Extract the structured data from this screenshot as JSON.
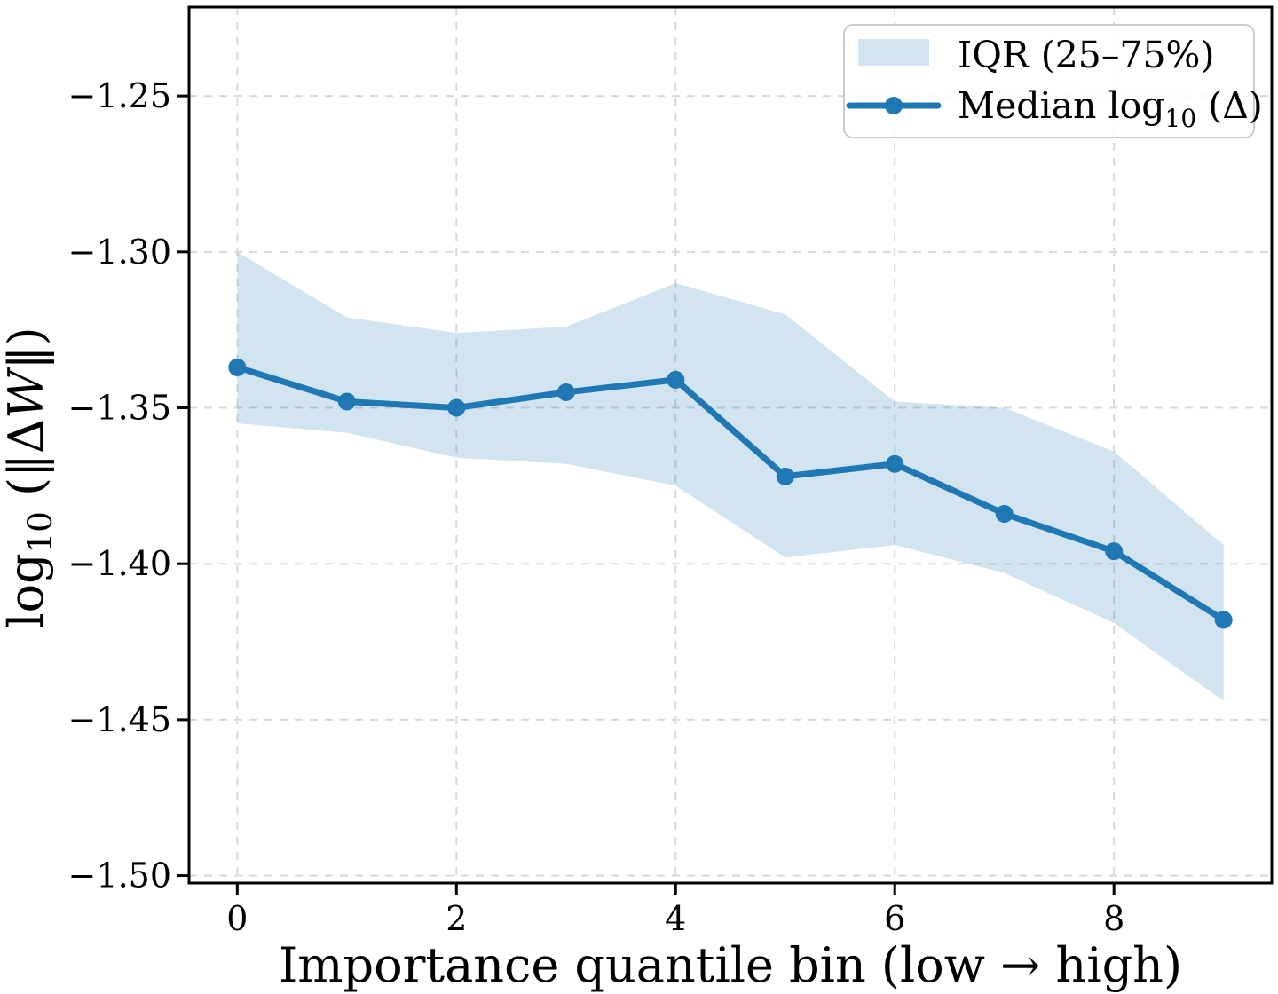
{
  "chart_data": {
    "type": "line",
    "title": "",
    "x": [
      0,
      1,
      2,
      3,
      4,
      5,
      6,
      7,
      8,
      9
    ],
    "series": [
      {
        "name": "Median log10 (Δ)",
        "label_segments": [
          {
            "text": "Median log"
          },
          {
            "text": "10",
            "style": "sub"
          },
          {
            "text": " (Δ)"
          }
        ],
        "values": [
          -1.337,
          -1.348,
          -1.35,
          -1.345,
          -1.341,
          -1.372,
          -1.368,
          -1.384,
          -1.396,
          -1.418
        ],
        "color": "#1f77b4",
        "marker": "circle",
        "marker_radius": 10,
        "line_width": 7
      }
    ],
    "band": {
      "name": "IQR (25–75%)",
      "label_segments": [
        {
          "text": "IQR (25–75%)"
        }
      ],
      "upper": [
        -1.3,
        -1.321,
        -1.326,
        -1.324,
        -1.31,
        -1.32,
        -1.348,
        -1.35,
        -1.364,
        -1.394
      ],
      "lower": [
        -1.355,
        -1.358,
        -1.366,
        -1.368,
        -1.375,
        -1.398,
        -1.394,
        -1.403,
        -1.419,
        -1.444
      ],
      "color": "#1f77b4",
      "opacity": 0.2
    },
    "xlabel": "Importance quantile bin (low → high)",
    "ylabel_segments": [
      {
        "text": "log"
      },
      {
        "text": "10",
        "style": "sub"
      },
      {
        "text": " (‖Δ"
      },
      {
        "text": "W",
        "style": "italic"
      },
      {
        "text": "‖)"
      }
    ],
    "xticks": [
      0,
      2,
      4,
      6,
      8
    ],
    "xtick_labels": [
      "0",
      "2",
      "4",
      "6",
      "8"
    ],
    "yticks": [
      -1.25,
      -1.3,
      -1.35,
      -1.4,
      -1.45,
      -1.5
    ],
    "ytick_labels": [
      "−1.25",
      "−1.30",
      "−1.35",
      "−1.40",
      "−1.45",
      "−1.50"
    ],
    "xlim": [
      -0.44,
      9.44
    ],
    "ylim": [
      -1.5024,
      -1.2215
    ],
    "grid": true,
    "grid_color": "#d9d9d9",
    "axis_color": "#000000",
    "background": "#ffffff",
    "legend": {
      "position": "upper right"
    }
  }
}
